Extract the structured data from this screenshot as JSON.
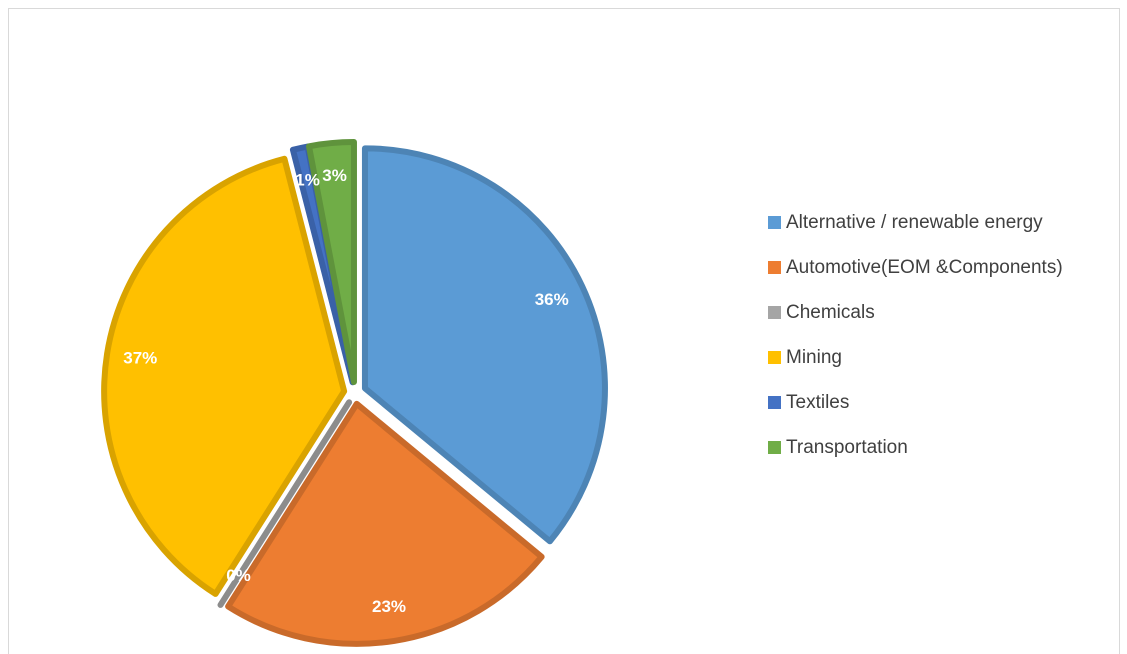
{
  "chart_data": {
    "type": "pie",
    "categories": [
      "Alternative / renewable energy",
      "Automotive(EOM &Components)",
      "Chemicals",
      "Mining",
      "Textiles",
      "Transportation"
    ],
    "values": [
      36,
      23,
      0,
      37,
      1,
      3
    ],
    "value_labels": [
      "36%",
      "23%",
      "0%",
      "37%",
      "1%",
      "3%"
    ],
    "colors": [
      "#5b9bd5",
      "#ed7d31",
      "#a5a5a5",
      "#ffc000",
      "#4472c4",
      "#70ad47"
    ],
    "legend": "right"
  }
}
